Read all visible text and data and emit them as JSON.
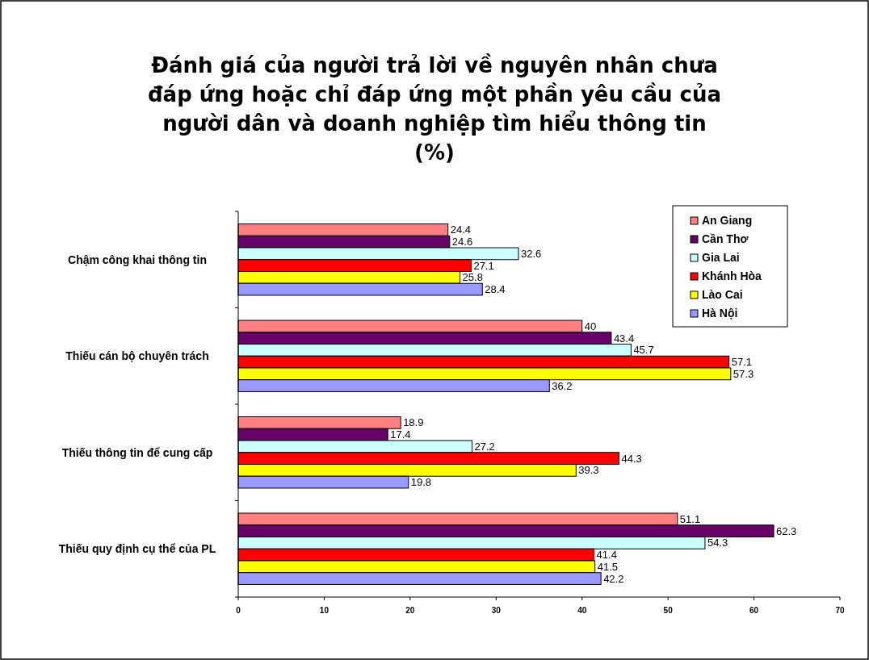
{
  "chart_data": {
    "type": "bar",
    "orientation": "horizontal",
    "title": "Đánh giá của người trả lời về nguyên nhân chưa đáp ứng hoặc chỉ đáp ứng một phần yêu cầu của người dân và doanh nghiệp tìm hiểu thông tin (%)",
    "categories": [
      "Chậm công khai thông tin",
      "Thiếu cán bộ chuyên trách",
      "Thiếu thông tin để cung cấp",
      "Thiếu quy định cụ thể của PL"
    ],
    "series": [
      {
        "name": "An Giang",
        "color": "#ff8080",
        "values": [
          24.4,
          40,
          18.9,
          51.1
        ]
      },
      {
        "name": "Cần Thơ",
        "color": "#660066",
        "values": [
          24.6,
          43.4,
          17.4,
          62.3
        ]
      },
      {
        "name": "Gia Lai",
        "color": "#ccffff",
        "values": [
          32.6,
          45.7,
          27.2,
          54.3
        ]
      },
      {
        "name": "Khánh Hòa",
        "color": "#ff0000",
        "values": [
          27.1,
          57.1,
          44.3,
          41.4
        ]
      },
      {
        "name": "Lào Cai",
        "color": "#ffff00",
        "values": [
          25.8,
          57.3,
          39.3,
          41.5
        ]
      },
      {
        "name": "Hà Nội",
        "color": "#9999ff",
        "values": [
          28.4,
          36.2,
          19.8,
          42.2
        ]
      }
    ],
    "xlim": [
      0,
      70
    ],
    "xticks": [
      0,
      10,
      20,
      30,
      40,
      50,
      60,
      70
    ],
    "data_labels": true,
    "legend": "top right",
    "grid": false
  }
}
